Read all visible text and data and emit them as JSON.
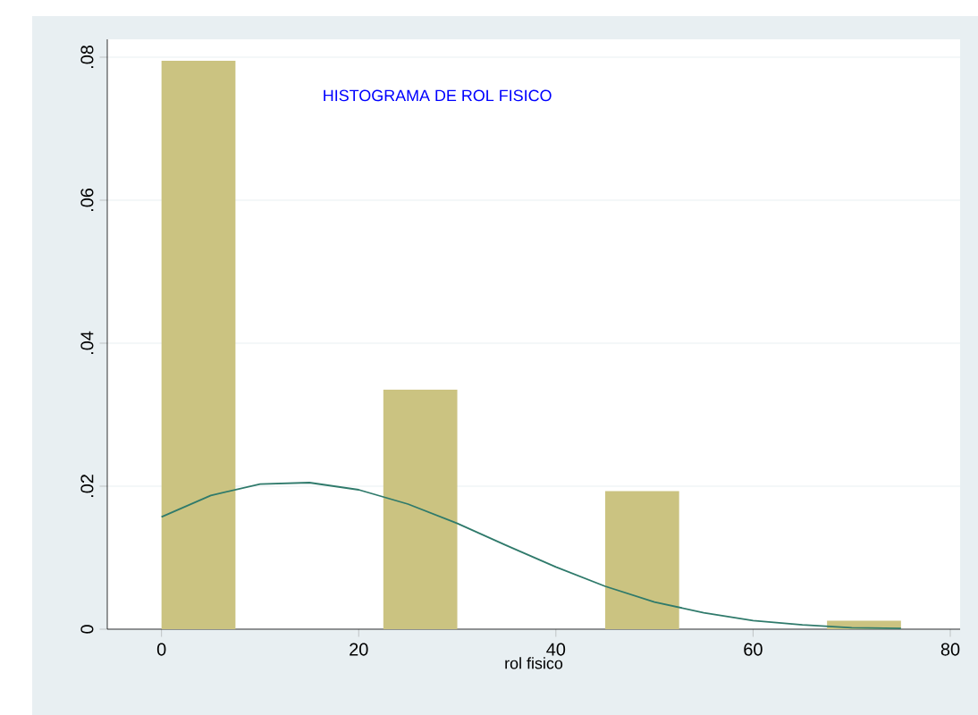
{
  "chart_data": {
    "type": "histogram",
    "xlabel": "rol fisico",
    "annotations": [
      "HISTOGRAMA DE ROL FISICO"
    ],
    "bins": [
      0,
      7.5,
      15,
      22.5,
      30,
      37.5,
      45,
      52.5,
      60,
      67.5,
      75
    ],
    "values": [
      0.0795,
      0,
      0,
      0.0335,
      0,
      0,
      0.0193,
      0,
      0,
      0.0012
    ],
    "color": "#cbc381",
    "series": [
      {
        "type": "line",
        "color": "#2f7a6b",
        "x": [
          0,
          5,
          10,
          15,
          20,
          25,
          30,
          35,
          40,
          45,
          50,
          55,
          60,
          65,
          70,
          75
        ],
        "values": [
          0.0157,
          0.0187,
          0.0203,
          0.0205,
          0.0195,
          0.0175,
          0.0148,
          0.0117,
          0.0087,
          0.006,
          0.0038,
          0.0023,
          0.0012,
          0.0006,
          0.0002,
          0.0001
        ]
      }
    ],
    "xlim": [
      -5.5,
      81
    ],
    "ylim": [
      0,
      0.0825
    ],
    "xticks": [
      0,
      20,
      40,
      60,
      80
    ],
    "yticks": [
      0,
      {
        "value": 0.02,
        "label": ".02"
      },
      {
        "value": 0.04,
        "label": ".04"
      },
      {
        "value": 0.06,
        "label": ".06"
      },
      {
        "value": 0.08,
        "label": ".08"
      }
    ],
    "grid": "y",
    "marker": "none",
    "line_style": "solid"
  }
}
